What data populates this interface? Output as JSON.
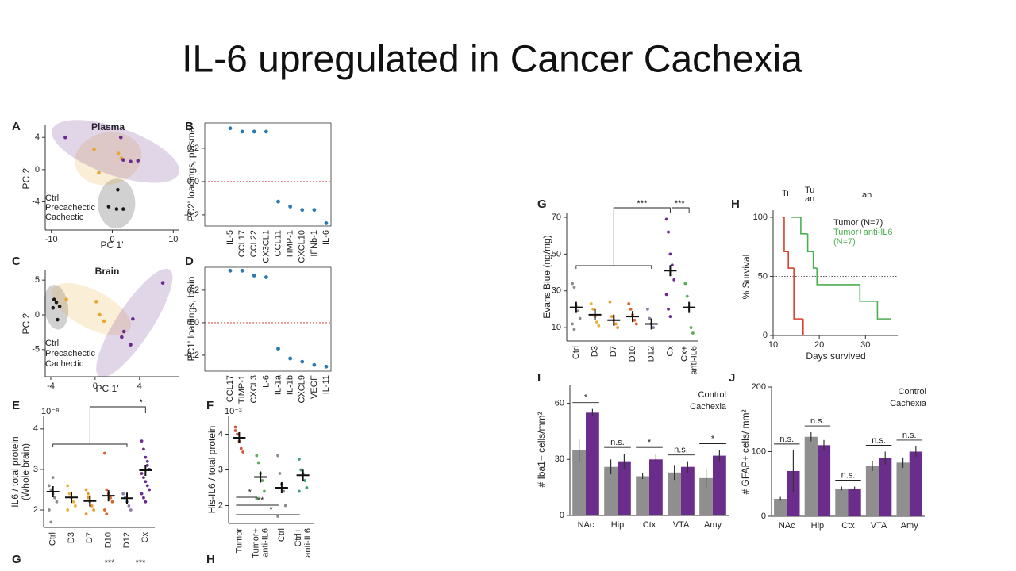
{
  "slide_title": "IL-6 upregulated in Cancer Cachexia",
  "cropped_panels": {
    "letters": [
      "G",
      "H"
    ],
    "significance": [
      "***",
      "***"
    ]
  },
  "chart_data": [
    {
      "type": "scatter",
      "panel": "A",
      "title": "Plasma",
      "x_label": "PC 1'",
      "y_label": "PC 2'",
      "xlim": [
        -11,
        11
      ],
      "ylim": [
        -7.5,
        5.5
      ],
      "xticks": [
        -10,
        0,
        10
      ],
      "yticks": [
        -4,
        0,
        4
      ],
      "series": [
        {
          "name": "Ctrl",
          "color": "#1a1a1a",
          "x": [
            0.9,
            -0.6,
            0.7,
            1.8
          ],
          "values": [
            -2.5,
            -4.6,
            -4.9,
            -4.9
          ]
        },
        {
          "name": "Precachectic",
          "color": "#e8a830",
          "x": [
            -3,
            1,
            -2.2,
            1.5
          ],
          "values": [
            2.5,
            2,
            -0.4,
            1.4
          ]
        },
        {
          "name": "Cachectic",
          "color": "#6a2c8e",
          "x": [
            -7.7,
            1.4,
            1.8,
            3,
            4.2
          ],
          "values": [
            4,
            4,
            1.2,
            1,
            1.1
          ]
        }
      ]
    },
    {
      "type": "dot",
      "panel": "B",
      "y_label": "PC2' loadings, plasma",
      "categories": [
        "IL-5",
        "CCL17",
        "CCL22",
        "CX3CL1",
        "CCL11",
        "TIMP-1",
        "CXCL10",
        "IFNb-1",
        "IL-6"
      ],
      "values": [
        0.32,
        0.3,
        0.3,
        0.3,
        -0.12,
        -0.15,
        -0.17,
        -0.17,
        -0.25
      ],
      "color": "#2b7bb0",
      "ylim": [
        -0.267,
        0.352
      ],
      "yticks": [
        -0.2,
        {
          "value": 0,
          "label": "0.0"
        },
        0.2
      ],
      "reference_line": 0,
      "reference_color": "#d62728"
    },
    {
      "type": "scatter",
      "panel": "C",
      "title": "Brain",
      "x_label": "PC 1'",
      "y_label": "PC 2'",
      "xlim": [
        -4.5,
        7.6
      ],
      "ylim": [
        -8.9,
        6.5
      ],
      "xticks": [
        -4,
        0,
        4
      ],
      "yticks": [
        -5,
        0,
        5
      ],
      "series": [
        {
          "name": "Ctrl",
          "color": "#1a1a1a",
          "x": [
            -3.8,
            -3.5,
            -3.2,
            -3.7,
            -3.4
          ],
          "values": [
            1,
            1.8,
            1.2,
            2.2,
            -0.7
          ]
        },
        {
          "name": "Precachectic",
          "color": "#e8a830",
          "x": [
            -2.6,
            0.1,
            0.4,
            0.8
          ],
          "values": [
            2.2,
            1.9,
            0,
            -0.9
          ]
        },
        {
          "name": "Cachectic",
          "color": "#6a2c8e",
          "x": [
            3.4,
            2.6,
            2.4,
            3.2,
            6.1
          ],
          "values": [
            -0.6,
            -2.4,
            -3.2,
            -4.3,
            4.6
          ]
        }
      ]
    },
    {
      "type": "dot",
      "panel": "D",
      "y_label": "PC1' loadings, brain",
      "categories": [
        "CCL17",
        "TIMP-1",
        "CXCL3",
        "IL-6",
        "IL-1a",
        "IL-1b",
        "CXCL9",
        "VEGF",
        "IL-11"
      ],
      "values": [
        0.32,
        0.32,
        0.29,
        0.28,
        -0.16,
        -0.22,
        -0.24,
        -0.26,
        -0.27
      ],
      "color": "#2b7bb0",
      "ylim": [
        -0.298,
        0.341
      ],
      "yticks": [
        -0.2,
        {
          "value": 0,
          "label": "0.0"
        },
        0.2
      ],
      "reference_line": 0,
      "reference_color": "#d62728"
    },
    {
      "type": "strip",
      "panel": "E",
      "y_label": [
        "IL6 / total protein",
        "(Whole brain)"
      ],
      "y_exponent": "10⁻⁹",
      "categories": [
        "Ctrl",
        "D3",
        "D7",
        "D10",
        "D12",
        "Cx"
      ],
      "colors": [
        "#8c8c8c",
        "#e8b339",
        "#e89a2c",
        "#d9662e",
        "#8e7fa8",
        "#6a2c8e"
      ],
      "points": [
        [
          2.6,
          2.5,
          2.4,
          2.3,
          2.2,
          2.0,
          1.7,
          2.8
        ],
        [
          2.6,
          2.4,
          2.3,
          2.2,
          2.1,
          2.0
        ],
        [
          2.5,
          2.3,
          2.2,
          2.1,
          2.0,
          1.9,
          2.4
        ],
        [
          3.4,
          2.5,
          2.4,
          2.3,
          2.2,
          2.0,
          1.9
        ],
        [
          2.4,
          2.3,
          2.2,
          2.1,
          2.0
        ],
        [
          3.7,
          3.5,
          3.3,
          3.1,
          3.0,
          2.9,
          2.8,
          2.7,
          2.6,
          2.5,
          2.4,
          2.3,
          2.2,
          3.2
        ]
      ],
      "means": [
        2.45,
        2.31,
        2.22,
        2.35,
        2.29,
        2.98
      ],
      "ylim": [
        1.57,
        4.31
      ],
      "yticks": [
        2,
        3,
        4
      ],
      "significance": [
        "*"
      ]
    },
    {
      "type": "strip",
      "panel": "F",
      "y_label": [
        "His-IL6 / total protein"
      ],
      "y_exponent": "10⁻³",
      "categories": [
        "Tumor",
        "Tumor+ anti-IL6",
        "Ctrl",
        "Ctrl+ anti-IL6"
      ],
      "colors": [
        "#d2553d",
        "#5bab5b",
        "#8c8c8c",
        "#3f9a6e"
      ],
      "points": [
        [
          4.2,
          4.0,
          3.8,
          3.6,
          3.5,
          4.1
        ],
        [
          3.4,
          3.2,
          2.9,
          2.7,
          2.4,
          2.2
        ],
        [
          3.4,
          2.9,
          2.6,
          2.4,
          2.0,
          1.7
        ],
        [
          3.3,
          3.0,
          2.9,
          2.7,
          2.5,
          2.4
        ]
      ],
      "means": [
        3.9,
        2.8,
        2.5,
        2.85
      ],
      "ylim": [
        1.5,
        4.5
      ],
      "yticks": [
        2,
        3,
        4
      ],
      "significance": [
        "*",
        "**",
        "*"
      ]
    },
    {
      "type": "strip",
      "panel": "G",
      "y_label": [
        "Evans Blue (ng/mg)"
      ],
      "categories": [
        "Ctrl",
        "D3",
        "D7",
        "D10",
        "D12",
        "Cx",
        "Cx+ anti-IL6"
      ],
      "colors": [
        "#8c8c8c",
        "#e8b339",
        "#e89a2c",
        "#d9662e",
        "#8e7fa8",
        "#6a2c8e",
        "#5bab5b"
      ],
      "points": [
        [
          34,
          32,
          22,
          19,
          15,
          12,
          9
        ],
        [
          23,
          20,
          16,
          13,
          11
        ],
        [
          24,
          16,
          14,
          12,
          10
        ],
        [
          23,
          20,
          17,
          14,
          12
        ],
        [
          20,
          15,
          12,
          10
        ],
        [
          69,
          62,
          50,
          44,
          36,
          28,
          20,
          16
        ],
        [
          34,
          27,
          21,
          10,
          7
        ]
      ],
      "means": [
        21,
        17,
        14,
        16,
        12,
        41,
        21
      ],
      "ylim": [
        2.7,
        72.6
      ],
      "yticks": [
        10,
        30,
        50,
        70
      ],
      "significance": [
        "***",
        "***"
      ]
    },
    {
      "type": "line",
      "step": true,
      "panel": "H",
      "x_label": "Days survived",
      "y_label": "% Survival",
      "xlim": [
        10,
        37
      ],
      "ylim": [
        0,
        106
      ],
      "xticks": [
        10,
        20,
        30
      ],
      "yticks": [
        0,
        50,
        100
      ],
      "reference_line": 50,
      "cropped_labels": [
        "Ti",
        "Tu",
        "an",
        "an"
      ],
      "series": [
        {
          "name": "Tumor (N=7)",
          "color": "#d9412f",
          "x": [
            12,
            12.4,
            13.3,
            14.5,
            16.5
          ],
          "values": [
            100,
            71,
            57,
            14,
            0
          ]
        },
        {
          "name": "Tumor+anti-IL6 (N=7)",
          "color": "#4caf50",
          "x": [
            14,
            16,
            17.5,
            18.7,
            19.5,
            28.8,
            32.6,
            35.5
          ],
          "values": [
            100,
            86,
            71,
            57,
            43,
            29,
            14,
            14
          ]
        }
      ]
    },
    {
      "type": "bar",
      "panel": "I",
      "y_label": "# Iba1+ cells/mm²",
      "categories": [
        "NAc",
        "Hip",
        "Ctx",
        "VTA",
        "Amy"
      ],
      "series": [
        {
          "name": "Control",
          "color": "#8f8f8f",
          "values": [
            35,
            26,
            21,
            23,
            20
          ],
          "errors": [
            6,
            4,
            1.5,
            4,
            5
          ]
        },
        {
          "name": "Cachexia",
          "color": "#6b2d8c",
          "values": [
            55,
            29,
            30,
            26,
            32
          ],
          "errors": [
            2,
            4,
            3,
            3,
            3
          ]
        }
      ],
      "ylim": [
        0,
        70
      ],
      "yticks": [
        0,
        30,
        60
      ],
      "significance": [
        "*",
        "n.s.",
        "*",
        "n.s.",
        "*"
      ]
    },
    {
      "type": "bar",
      "panel": "J",
      "y_label": "# GFAP+ cells/ mm²",
      "categories": [
        "NAc",
        "Hip",
        "Ctx",
        "VTA",
        "Amy"
      ],
      "series": [
        {
          "name": "Control",
          "color": "#8f8f8f",
          "values": [
            27,
            123,
            43,
            78,
            83
          ],
          "errors": [
            3,
            7,
            3,
            8,
            8
          ]
        },
        {
          "name": "Cachexia",
          "color": "#6b2d8c",
          "values": [
            70,
            110,
            43,
            90,
            100
          ],
          "errors": [
            32,
            8,
            3,
            10,
            8
          ]
        }
      ],
      "ylim": [
        0,
        200
      ],
      "yticks": [
        0,
        100,
        200
      ],
      "significance": [
        "n.s.",
        "n.s.",
        "n.s.",
        "n.s.",
        "n.s."
      ]
    }
  ]
}
